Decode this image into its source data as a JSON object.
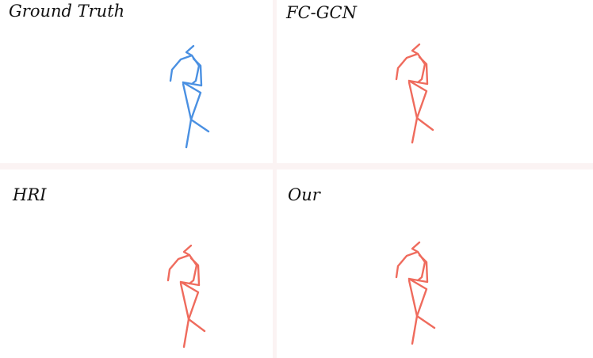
{
  "panels": {
    "ground_truth": {
      "label": "Ground Truth",
      "color": "#4a90e2"
    },
    "fc_gcn": {
      "label": "FC-GCN",
      "color": "#ef6b5d"
    },
    "hri": {
      "label": "HRI",
      "color": "#ef6b5d"
    },
    "our": {
      "label": "Our",
      "color": "#ef6b5d"
    }
  }
}
